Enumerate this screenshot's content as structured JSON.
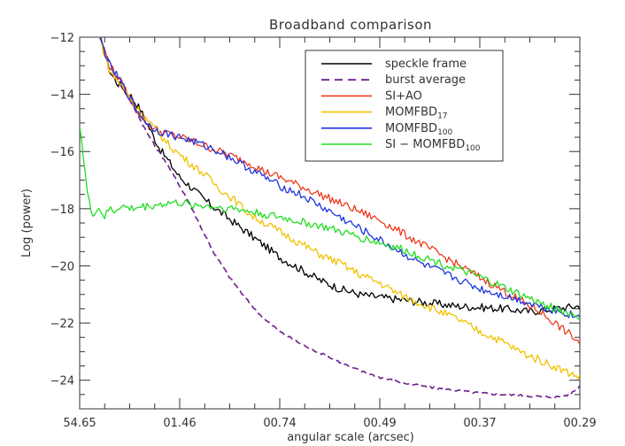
{
  "chart_data": {
    "type": "line",
    "title": "Broadband comparison",
    "xlabel": "angular scale (arcsec)",
    "ylabel": "Log (power)",
    "xlim": [
      0,
      100
    ],
    "ylim": [
      -25,
      -12
    ],
    "xticks": [
      {
        "pos": 0,
        "label": "54.65"
      },
      {
        "pos": 20,
        "label": "01.46"
      },
      {
        "pos": 40,
        "label": "00.74"
      },
      {
        "pos": 60,
        "label": "00.49"
      },
      {
        "pos": 80,
        "label": "00.37"
      },
      {
        "pos": 100,
        "label": "00.29"
      }
    ],
    "yticks": [
      -24,
      -22,
      -20,
      -18,
      -16,
      -14,
      -12
    ],
    "legend_position": "top-right",
    "series": [
      {
        "name": "speckle frame",
        "color": "#000000",
        "dash": "solid",
        "x": [
          4,
          6,
          7.5,
          9,
          10,
          12,
          14,
          16,
          18,
          20,
          22,
          25,
          28,
          31,
          34,
          37,
          40,
          44,
          48,
          52,
          56,
          60,
          65,
          70,
          75,
          80,
          85,
          90,
          95,
          100
        ],
        "y": [
          -12,
          -13.2,
          -13.6,
          -13.8,
          -14,
          -14.5,
          -15.2,
          -15.9,
          -16.4,
          -16.9,
          -17.2,
          -17.7,
          -18.1,
          -18.5,
          -18.9,
          -19.3,
          -19.7,
          -20.1,
          -20.5,
          -20.8,
          -21.0,
          -21.1,
          -21.2,
          -21.3,
          -21.4,
          -21.45,
          -21.5,
          -21.6,
          -21.5,
          -21.4
        ]
      },
      {
        "name": "burst average",
        "color": "#6a1e8e",
        "dash": "dashed",
        "x": [
          4,
          7,
          9,
          11,
          13,
          15,
          17,
          19,
          21,
          23,
          25,
          27,
          30,
          33,
          36,
          40,
          45,
          50,
          55,
          60,
          65,
          70,
          75,
          80,
          85,
          90,
          95,
          98,
          100
        ],
        "y": [
          -12,
          -13.3,
          -13.9,
          -14.5,
          -15.2,
          -15.8,
          -16.3,
          -16.9,
          -17.5,
          -18.2,
          -18.9,
          -19.6,
          -20.4,
          -21.1,
          -21.7,
          -22.3,
          -22.8,
          -23.2,
          -23.6,
          -23.9,
          -24.1,
          -24.25,
          -24.35,
          -24.45,
          -24.5,
          -24.55,
          -24.6,
          -24.5,
          -24.2
        ]
      },
      {
        "name": "SI+AO",
        "color": "#ee3b1f",
        "dash": "solid",
        "x": [
          4,
          6,
          8,
          10,
          12,
          14,
          16,
          18,
          20,
          22,
          25,
          28,
          31,
          34,
          37,
          40,
          44,
          48,
          52,
          56,
          60,
          64,
          68,
          72,
          76,
          80,
          84,
          88,
          92,
          95,
          98,
          100
        ],
        "y": [
          -12,
          -13,
          -13.5,
          -14.1,
          -14.7,
          -15.1,
          -15.3,
          -15.4,
          -15.5,
          -15.6,
          -15.8,
          -16.0,
          -16.2,
          -16.4,
          -16.7,
          -16.9,
          -17.2,
          -17.5,
          -17.8,
          -18.1,
          -18.4,
          -18.8,
          -19.2,
          -19.6,
          -20.0,
          -20.4,
          -20.8,
          -21.2,
          -21.6,
          -22.0,
          -22.4,
          -22.7
        ]
      },
      {
        "name": "MOMFBD17",
        "color": "#f2c200",
        "dash": "solid",
        "x": [
          4,
          6,
          8,
          10,
          12,
          14,
          16,
          18,
          20,
          22,
          25,
          28,
          31,
          34,
          37,
          40,
          44,
          48,
          52,
          56,
          60,
          64,
          68,
          72,
          76,
          80,
          84,
          88,
          92,
          96,
          100
        ],
        "y": [
          -12,
          -13.2,
          -13.6,
          -14.1,
          -14.6,
          -15.0,
          -15.4,
          -15.8,
          -16.1,
          -16.4,
          -16.8,
          -17.3,
          -17.7,
          -18.2,
          -18.5,
          -18.8,
          -19.2,
          -19.6,
          -19.9,
          -20.3,
          -20.6,
          -21.0,
          -21.3,
          -21.6,
          -21.9,
          -22.3,
          -22.6,
          -23.0,
          -23.3,
          -23.6,
          -23.9
        ]
      },
      {
        "name": "MOMFBD100",
        "color": "#1f35e0",
        "dash": "solid",
        "x": [
          4,
          6,
          8,
          10,
          12,
          14,
          16,
          18,
          20,
          22,
          25,
          28,
          31,
          34,
          37,
          40,
          44,
          48,
          52,
          56,
          60,
          64,
          68,
          72,
          76,
          80,
          84,
          88,
          92,
          96,
          100
        ],
        "y": [
          -12,
          -13,
          -13.5,
          -14.1,
          -14.7,
          -15.1,
          -15.3,
          -15.4,
          -15.5,
          -15.6,
          -15.8,
          -16.0,
          -16.3,
          -16.6,
          -16.9,
          -17.2,
          -17.5,
          -17.9,
          -18.3,
          -18.7,
          -19.1,
          -19.5,
          -19.9,
          -20.2,
          -20.5,
          -20.8,
          -21.0,
          -21.2,
          -21.4,
          -21.6,
          -21.8
        ]
      },
      {
        "name": "SI − MOMFBD100",
        "color": "#22dd22",
        "dash": "solid",
        "x": [
          0,
          0.5,
          1,
          1.5,
          2,
          2.5,
          3,
          4,
          5,
          6,
          7,
          8,
          10,
          12,
          14,
          16,
          18,
          20,
          22,
          25,
          28,
          31,
          34,
          37,
          40,
          44,
          48,
          52,
          56,
          60,
          64,
          68,
          72,
          76,
          80,
          84,
          88,
          92,
          96,
          100
        ],
        "y": [
          -15,
          -15.8,
          -16.6,
          -17.4,
          -17.9,
          -18.2,
          -18.1,
          -18.0,
          -18.3,
          -18.0,
          -18.1,
          -17.9,
          -18.0,
          -17.95,
          -17.9,
          -17.85,
          -17.8,
          -17.8,
          -17.85,
          -17.9,
          -17.95,
          -18.0,
          -18.1,
          -18.2,
          -18.3,
          -18.45,
          -18.6,
          -18.8,
          -19.0,
          -19.2,
          -19.4,
          -19.65,
          -19.9,
          -20.15,
          -20.4,
          -20.7,
          -21.0,
          -21.3,
          -21.55,
          -21.8
        ]
      }
    ]
  },
  "legend": {
    "entries": [
      {
        "main": "speckle frame",
        "sub": "",
        "suffix": ""
      },
      {
        "main": "burst average",
        "sub": "",
        "suffix": ""
      },
      {
        "main": "SI+AO",
        "sub": "",
        "suffix": ""
      },
      {
        "main": "MOMFBD",
        "sub": "17",
        "suffix": ""
      },
      {
        "main": "MOMFBD",
        "sub": "100",
        "suffix": ""
      },
      {
        "main": "SI − MOMFBD",
        "sub": "100",
        "suffix": ""
      }
    ]
  }
}
